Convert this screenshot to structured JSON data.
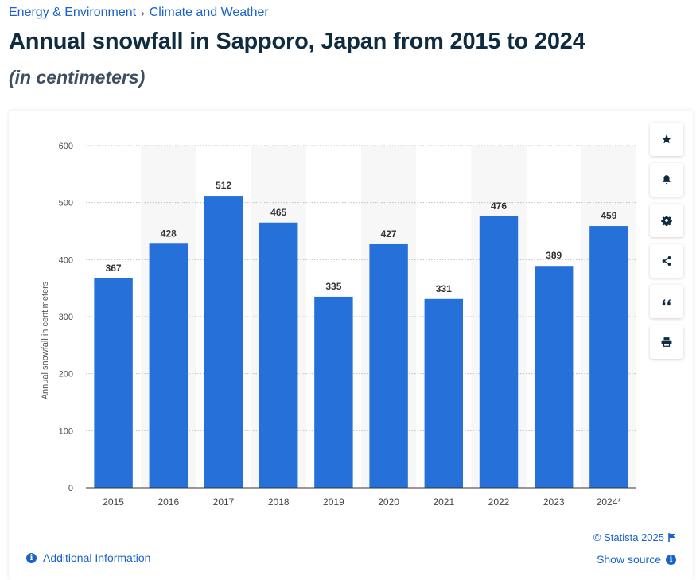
{
  "breadcrumb": {
    "items": [
      "Energy & Environment",
      "Climate and Weather"
    ],
    "separator": "›"
  },
  "title": "Annual snowfall in Sapporo, Japan from 2015 to 2024",
  "subtitle": "(in centimeters)",
  "colors": {
    "bar": "#2671d9",
    "link": "#1a62c9",
    "title": "#0f2b3f",
    "band": "#f7f7f7"
  },
  "toolbar": {
    "icons": [
      "star-icon",
      "bell-icon",
      "gear-icon",
      "share-icon",
      "quote-icon",
      "print-icon"
    ]
  },
  "footer": {
    "copyright": "© Statista 2025",
    "show_source": "Show source",
    "additional_info": "Additional Information"
  },
  "chart_data": {
    "type": "bar",
    "categories": [
      "2015",
      "2016",
      "2017",
      "2018",
      "2019",
      "2020",
      "2021",
      "2022",
      "2023",
      "2024*"
    ],
    "values": [
      367,
      428,
      512,
      465,
      335,
      427,
      331,
      476,
      389,
      459
    ],
    "ylabel": "Annual snowfall in centimeters",
    "xlabel": "",
    "ylim": [
      0,
      600
    ],
    "yticks": [
      0,
      100,
      200,
      300,
      400,
      500,
      600
    ],
    "grid": true,
    "data_labels": true,
    "alternating_bands": true
  }
}
